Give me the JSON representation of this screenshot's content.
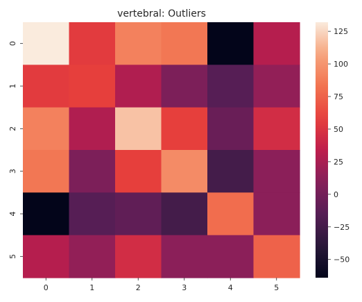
{
  "chart_data": {
    "type": "heatmap",
    "title": "vertebral: Outliers",
    "xlabel": "",
    "ylabel": "",
    "x_categories": [
      "0",
      "1",
      "2",
      "3",
      "4",
      "5"
    ],
    "y_categories": [
      "0",
      "1",
      "2",
      "3",
      "4",
      "5"
    ],
    "values": [
      [
        132,
        55,
        90,
        85,
        -64,
        30
      ],
      [
        55,
        58,
        28,
        5,
        -15,
        15
      ],
      [
        90,
        28,
        118,
        58,
        -5,
        45
      ],
      [
        85,
        5,
        58,
        95,
        -25,
        12
      ],
      [
        -64,
        -15,
        -10,
        -25,
        80,
        12
      ],
      [
        30,
        15,
        45,
        12,
        12,
        75
      ]
    ],
    "vmin": -64,
    "vmax": 132,
    "colorbar_ticks": [
      125,
      100,
      75,
      50,
      25,
      0,
      -25,
      -50
    ],
    "colormap": "rocket",
    "grid": false
  }
}
